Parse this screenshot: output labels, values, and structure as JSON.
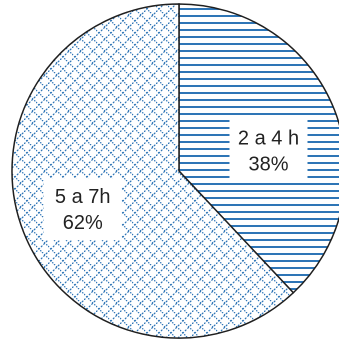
{
  "chart_data": {
    "type": "pie",
    "title": "",
    "slices": [
      {
        "label": "2 a 4 h",
        "percent_label": "38%",
        "value": 38,
        "pattern": "horizontal-lines"
      },
      {
        "label": "5 a 7h",
        "percent_label": "62%",
        "value": 62,
        "pattern": "weave"
      }
    ],
    "start_angle_deg": 0,
    "direction": "clockwise",
    "legend": "none",
    "colors": {
      "stroke": "#1f1f1f",
      "pattern": "#2e75b6",
      "label_bg": "#ffffff",
      "text": "#222222"
    }
  }
}
